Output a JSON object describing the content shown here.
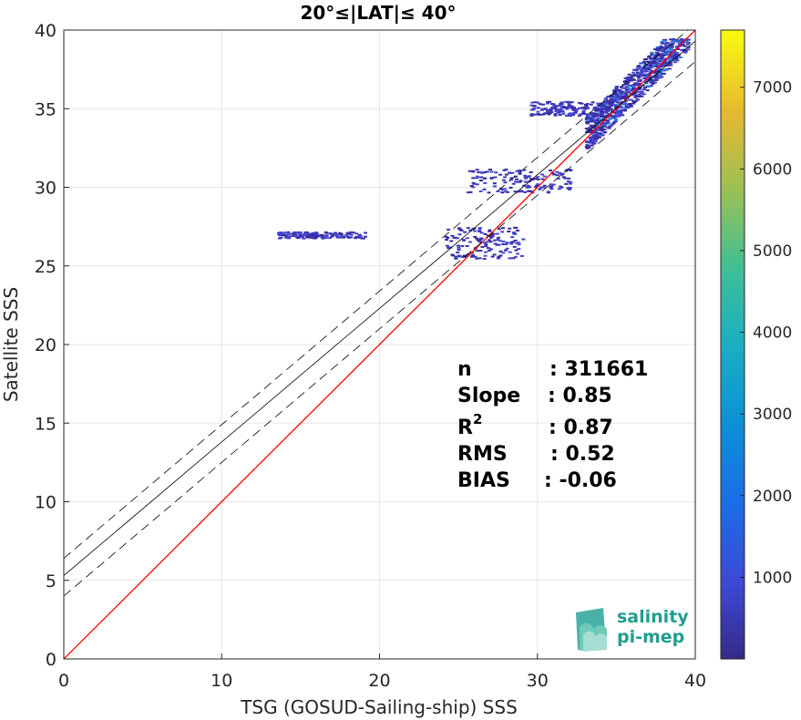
{
  "chart_data": {
    "type": "heatmap",
    "title": "20°≤|LAT|≤ 40°",
    "xlabel": "TSG (GOSUD-Sailing-ship) SSS",
    "ylabel": "Satellite SSS",
    "xlim": [
      0,
      40
    ],
    "ylim": [
      0,
      40
    ],
    "xticks": [
      "0",
      "10",
      "20",
      "30",
      "40"
    ],
    "yticks": [
      "0",
      "5",
      "10",
      "15",
      "20",
      "25",
      "30",
      "35",
      "40"
    ],
    "grid": true,
    "colorbar": {
      "range": [
        0,
        7700
      ],
      "ticks": [
        "1000",
        "2000",
        "3000",
        "4000",
        "5000",
        "6000",
        "7000"
      ],
      "colormap": "parula"
    },
    "lines": [
      {
        "name": "1:1",
        "color": "#ff0000",
        "style": "solid",
        "x": [
          0,
          40
        ],
        "y": [
          0,
          40
        ]
      },
      {
        "name": "fit",
        "color": "#000000",
        "style": "solid",
        "x": [
          0,
          40
        ],
        "y": [
          5.3,
          39.3
        ]
      },
      {
        "name": "fit+",
        "color": "#000000",
        "style": "dashed",
        "x": [
          0,
          40
        ],
        "y": [
          6.4,
          40.4
        ]
      },
      {
        "name": "fit-",
        "color": "#000000",
        "style": "dashed",
        "x": [
          0,
          40
        ],
        "y": [
          4.0,
          38.0
        ]
      }
    ],
    "density_regions": [
      {
        "x": [
          33,
          39.5
        ],
        "y": [
          32.5,
          39.5
        ],
        "level": "high"
      },
      {
        "x": [
          24,
          29
        ],
        "y": [
          25.5,
          27.5
        ],
        "level": "low"
      },
      {
        "x": [
          13.5,
          19
        ],
        "y": [
          26.8,
          27.2
        ],
        "level": "low"
      },
      {
        "x": [
          25.5,
          32
        ],
        "y": [
          29.7,
          31.2
        ],
        "level": "low"
      },
      {
        "x": [
          29.5,
          34
        ],
        "y": [
          34.6,
          35.5
        ],
        "level": "low"
      }
    ],
    "stats": [
      {
        "label": "n",
        "value": ": 311661"
      },
      {
        "label": "Slope",
        "value": ": 0.85"
      },
      {
        "label": "R",
        "sup": "2",
        "value": ": 0.87"
      },
      {
        "label": "RMS",
        "value": ": 0.52"
      },
      {
        "label": "BIAS",
        "value": ": -0.06"
      }
    ]
  },
  "logo": {
    "line1": "salinity",
    "line2": "pi-mep"
  }
}
